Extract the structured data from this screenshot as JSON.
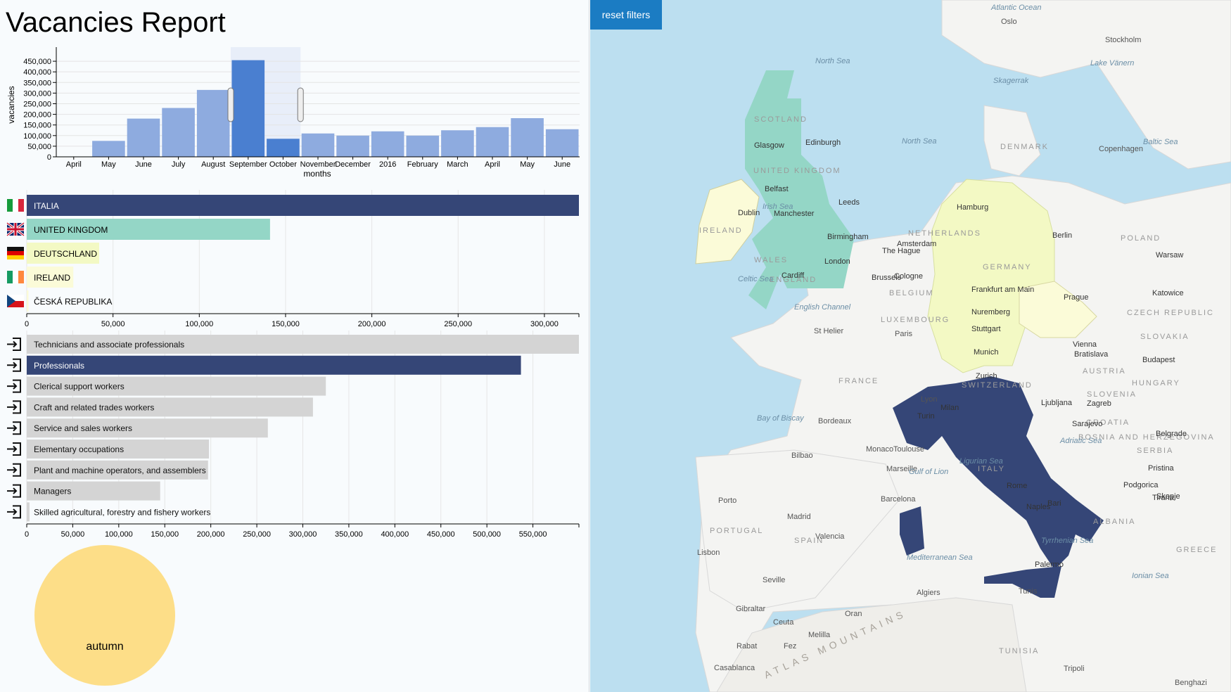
{
  "title": "Vacancies Report",
  "reset_button": "reset filters",
  "colors": {
    "bar_light": "#8eabdf",
    "bar_selected": "#4a7fd0",
    "dark_navy": "#354677",
    "uk_teal": "#94d6c6",
    "de_yellow": "#f3f9c4",
    "ie_cream": "#fbfbd8",
    "grey_bar": "#d4d4d4",
    "season_circle": "#fdde88",
    "map_water": "#bcdff0",
    "map_land": "#f4f4f2"
  },
  "chart_data": [
    {
      "type": "bar",
      "ylabel": "vacancies",
      "xlabel": "months",
      "categories": [
        "April",
        "May",
        "June",
        "July",
        "August",
        "September",
        "October",
        "November",
        "December",
        "2016",
        "February",
        "March",
        "April",
        "May",
        "June"
      ],
      "values": [
        0,
        75000,
        180000,
        230000,
        315000,
        455000,
        85000,
        110000,
        100000,
        120000,
        100000,
        125000,
        140000,
        182000,
        130000
      ],
      "selected_range": [
        "September",
        "October"
      ],
      "highlighted": [
        "September"
      ],
      "yticks": [
        "0",
        "50,000",
        "100,000",
        "150,000",
        "200,000",
        "250,000",
        "300,000",
        "350,000",
        "400,000",
        "450,000"
      ],
      "ylim": [
        0,
        490000
      ],
      "grid": true
    },
    {
      "type": "bar",
      "orientation": "horizontal",
      "categories": [
        "ITALIA",
        "UNITED KINGDOM",
        "DEUTSCHLAND",
        "IRELAND",
        "ČESKÁ REPUBLIKA"
      ],
      "values": [
        320000,
        141000,
        42000,
        27000,
        1000
      ],
      "flags": [
        "it-flag-icon",
        "uk-flag-icon",
        "de-flag-icon",
        "ie-flag-icon",
        "cz-flag-icon"
      ],
      "xticks": [
        "0",
        "50,000",
        "100,000",
        "150,000",
        "200,000",
        "250,000",
        "300,000"
      ],
      "xlim": [
        0,
        320000
      ]
    },
    {
      "type": "bar",
      "orientation": "horizontal",
      "categories": [
        "Technicians and associate professionals",
        "Professionals",
        "Clerical support workers",
        "Craft and related trades workers",
        "Service and sales workers",
        "Elementary occupations",
        "Plant and machine operators, and assemblers",
        "Managers",
        "Skilled agricultural, forestry and fishery workers"
      ],
      "values": [
        600000,
        537000,
        325000,
        311000,
        262000,
        198000,
        197000,
        145000,
        3000
      ],
      "selected": [
        "Professionals"
      ],
      "xticks": [
        "0",
        "50,000",
        "100,000",
        "150,000",
        "200,000",
        "250,000",
        "300,000",
        "350,000",
        "400,000",
        "450,000",
        "500,000",
        "550,000"
      ],
      "xlim": [
        0,
        600000
      ]
    },
    {
      "type": "pie",
      "categories": [
        "autumn"
      ],
      "values": [
        1
      ]
    }
  ],
  "map": {
    "country_labels": [
      "SCOTLAND",
      "UNITED KINGDOM",
      "WALES",
      "ENGLAND",
      "IRELAND",
      "GERMANY",
      "FRANCE",
      "ITALY",
      "SPAIN",
      "PORTUGAL",
      "DENMARK",
      "NETHERLANDS",
      "BELGIUM",
      "POLAND",
      "CZECH REPUBLIC",
      "SLOVAKIA",
      "AUSTRIA",
      "HUNGARY",
      "SWITZERLAND",
      "SLOVENIA",
      "CROATIA",
      "BOSNIA AND HERZEGOVINA",
      "SERBIA",
      "ALBANIA",
      "TUNISIA",
      "LUXEMBOURG",
      "GREECE"
    ],
    "city_labels": [
      "Edinburgh",
      "Glasgow",
      "Belfast",
      "Dublin",
      "Manchester",
      "Leeds",
      "Birmingham",
      "London",
      "Cardiff",
      "The Hague",
      "Amsterdam",
      "Brussels",
      "Cologne",
      "Hamburg",
      "Berlin",
      "Frankfurt am Main",
      "Nuremberg",
      "Stuttgart",
      "Munich",
      "Prague",
      "Vienna",
      "Bratislava",
      "Budapest",
      "Katowice",
      "Warsaw",
      "Zurich",
      "Milan",
      "Turin",
      "Ljubljana",
      "Zagreb",
      "Sarajevo",
      "Belgrade",
      "Podgorica",
      "Tirana",
      "Skopje",
      "Pristina",
      "Rome",
      "Naples",
      "Bari",
      "Palermo",
      "Paris",
      "Lyon",
      "Toulouse",
      "Bordeaux",
      "Marseille",
      "Monaco",
      "Bilbao",
      "Barcelona",
      "Madrid",
      "Valencia",
      "Porto",
      "Lisbon",
      "Seville",
      "Gibraltar",
      "Ceuta",
      "Melilla",
      "Rabat",
      "Fez",
      "Casablanca",
      "Oran",
      "Algiers",
      "Tunis",
      "Tripoli",
      "Benghazi",
      "Copenhagen",
      "Stockholm",
      "Oslo",
      "St Helier"
    ],
    "water_labels": [
      "North Sea",
      "North Sea",
      "Irish Sea",
      "Celtic Sea",
      "English Channel",
      "Bay of Biscay",
      "Baltic Sea",
      "Skagerrak",
      "Gulf of Lion",
      "Ligurian Sea",
      "Tyrrhenian Sea",
      "Adriatic Sea",
      "Ionian Sea",
      "Mediterranean Sea",
      "Atlantic Ocean",
      "Lake Vänern"
    ],
    "terrain_labels": [
      "ATLAS MOUNTAINS"
    ]
  }
}
